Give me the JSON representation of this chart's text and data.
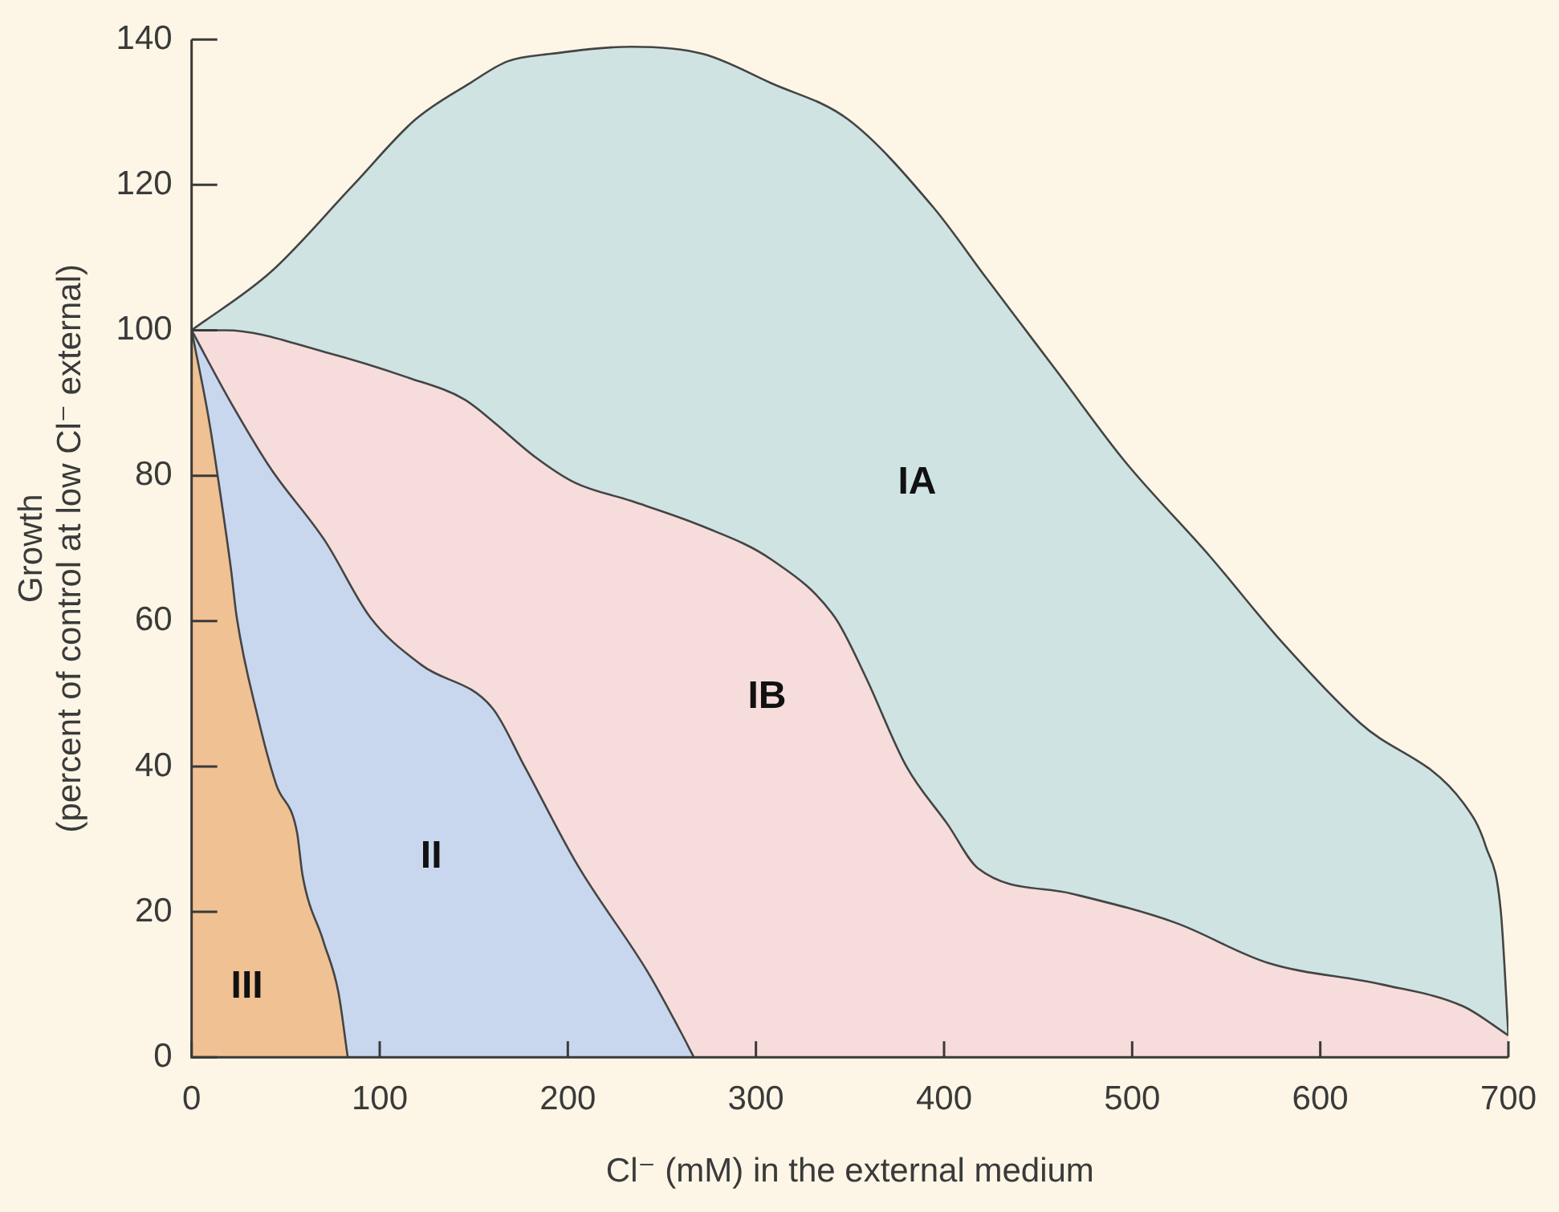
{
  "chart_data": {
    "type": "area",
    "xlabel": "Cl⁻ (mM) in the external medium",
    "ylabel": "Growth\n(percent of control at low Cl⁻ external)",
    "xlim": [
      0,
      700
    ],
    "xticks": [
      0,
      100,
      200,
      300,
      400,
      500,
      600,
      700
    ],
    "ylim": [
      0,
      140
    ],
    "yticks": [
      0,
      20,
      40,
      60,
      80,
      100,
      120,
      140
    ],
    "grid": false,
    "legend": false,
    "series": [
      {
        "name": "IA",
        "color": "#cfe3e3",
        "x": [
          0,
          42,
          86,
          119,
          148,
          168,
          190,
          234,
          272,
          308,
          349,
          394,
          423,
          461,
          496,
          541,
          580,
          621,
          676,
          688,
          696,
          700
        ],
        "values": [
          100,
          108,
          120,
          129,
          134,
          137,
          138,
          139,
          138,
          134,
          129,
          117,
          107,
          94,
          82,
          69,
          57,
          46,
          35,
          29,
          20,
          3
        ]
      },
      {
        "name": "IB",
        "color": "#f6dcdb",
        "x": [
          0,
          18,
          71,
          115,
          145,
          160,
          183,
          204,
          234,
          272,
          308,
          342,
          358,
          380,
          402,
          418,
          468,
          523,
          572,
          633,
          676,
          700
        ],
        "values": [
          100,
          100,
          97,
          93.5,
          90.5,
          87.5,
          82.5,
          79,
          76.5,
          73,
          68.5,
          60.5,
          52.5,
          40,
          32,
          26,
          22.5,
          18.5,
          13,
          10,
          7,
          3
        ]
      },
      {
        "name": "II",
        "color": "#c8d7ee",
        "x": [
          0,
          21,
          42,
          71,
          95,
          122,
          160,
          177,
          205,
          243,
          260,
          267
        ],
        "values": [
          100,
          90,
          81,
          71,
          60.5,
          54,
          48,
          40,
          26.5,
          11.5,
          3.5,
          0
        ]
      },
      {
        "name": "III",
        "color": "#f0c192",
        "x": [
          0,
          9,
          15,
          21,
          24,
          35,
          45,
          56,
          59,
          70,
          78,
          83
        ],
        "values": [
          100,
          88,
          78,
          67,
          60.5,
          47,
          37.5,
          31,
          25,
          16,
          9,
          0
        ]
      }
    ]
  }
}
